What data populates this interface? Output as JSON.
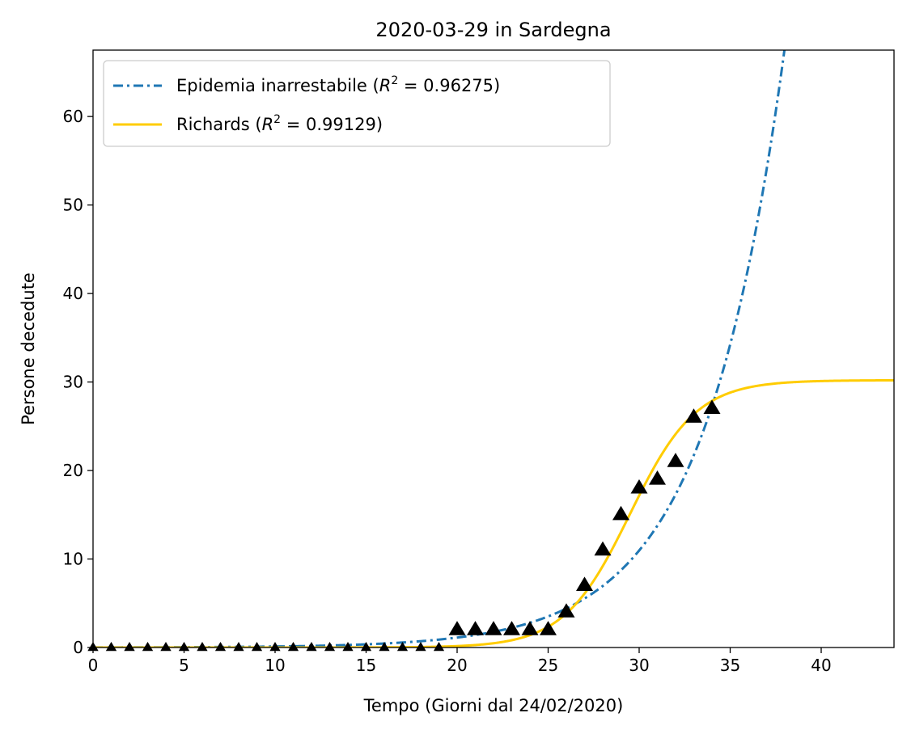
{
  "chart_data": {
    "type": "line",
    "title": "2020-03-29 in Sardegna",
    "xlabel": "Tempo (Giorni dal 24/02/2020)",
    "ylabel": "Persone decedute",
    "xlim": [
      0,
      44
    ],
    "ylim": [
      0,
      67.5
    ],
    "xticks": [
      0,
      5,
      10,
      15,
      20,
      25,
      30,
      35,
      40
    ],
    "yticks": [
      0,
      10,
      20,
      30,
      40,
      50,
      60
    ],
    "grid": false,
    "legend_position": "top-left",
    "series": [
      {
        "name": "Epidemia inarrestabile (R² = 0.96275)",
        "label_main": "Epidemia inarrestabile (",
        "label_r2": "R",
        "label_sup": "2",
        "label_value": " = 0.96275)",
        "style": "dash-dot",
        "color": "#1f77b4",
        "model": "exponential",
        "params": {
          "a": 0.0118,
          "b": 0.2278
        }
      },
      {
        "name": "Richards (R² = 0.99129)",
        "label_main": "Richards (",
        "label_r2": "R",
        "label_sup": "2",
        "label_value": " = 0.99129)",
        "style": "solid",
        "color": "#ffcc00",
        "model": "logistic",
        "params": {
          "K": 30.2,
          "r": 0.55,
          "t0": 29.5
        }
      }
    ],
    "observed": {
      "marker": "triangle",
      "color": "#000000",
      "x": [
        0,
        1,
        2,
        3,
        4,
        5,
        6,
        7,
        8,
        9,
        10,
        11,
        12,
        13,
        14,
        15,
        16,
        17,
        18,
        19,
        20,
        21,
        22,
        23,
        24,
        25,
        26,
        27,
        28,
        29,
        30,
        31,
        32,
        33,
        34
      ],
      "y": [
        0,
        0,
        0,
        0,
        0,
        0,
        0,
        0,
        0,
        0,
        0,
        0,
        0,
        0,
        0,
        0,
        0,
        0,
        0,
        0,
        2,
        2,
        2,
        2,
        2,
        2,
        4,
        7,
        11,
        15,
        18,
        19,
        21,
        26,
        27
      ]
    }
  }
}
